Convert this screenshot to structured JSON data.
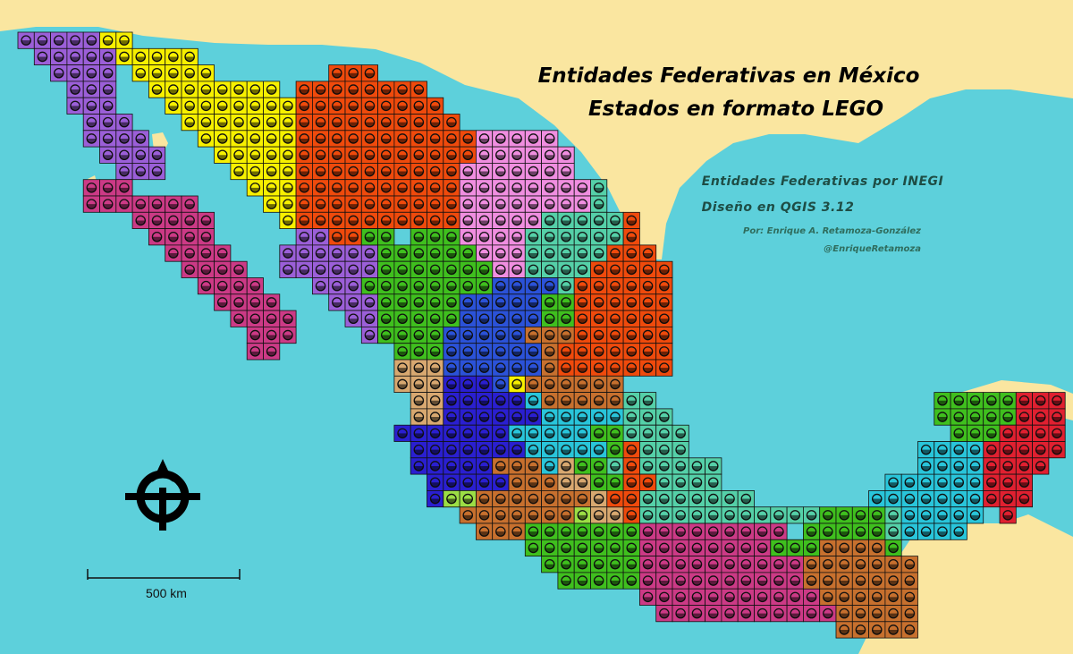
{
  "map": {
    "title_line1": "Entidades Federativas en México",
    "title_line2": "Estados en formato LEGO",
    "subtitle_line1": "Entidades Federativas por INEGI",
    "subtitle_line2": "Diseño en QGIS 3.12",
    "author": "Por: Enrique A. Retamoza-González",
    "handle": "@EnriqueRetamoza",
    "scale_label": "500 km",
    "compass_icon": "north-arrow-icon",
    "colors": {
      "sea": "#5dd0db",
      "land": "#fae6a0",
      "brick_purple": "#9b5fd8",
      "brick_yellow": "#f7f000",
      "brick_orange": "#ef4a0c",
      "brick_magenta": "#cc3a86",
      "brick_pink": "#f08ee0",
      "brick_green": "#3fbf1e",
      "brick_teal": "#55d0a8",
      "brick_blue": "#2b52d8",
      "brick_brown": "#c7702e",
      "brick_navy": "#2a1fd0",
      "brick_cyan": "#29c5da",
      "brick_tan": "#d8a870",
      "brick_red": "#e02030",
      "brick_lime": "#9cde45"
    }
  }
}
